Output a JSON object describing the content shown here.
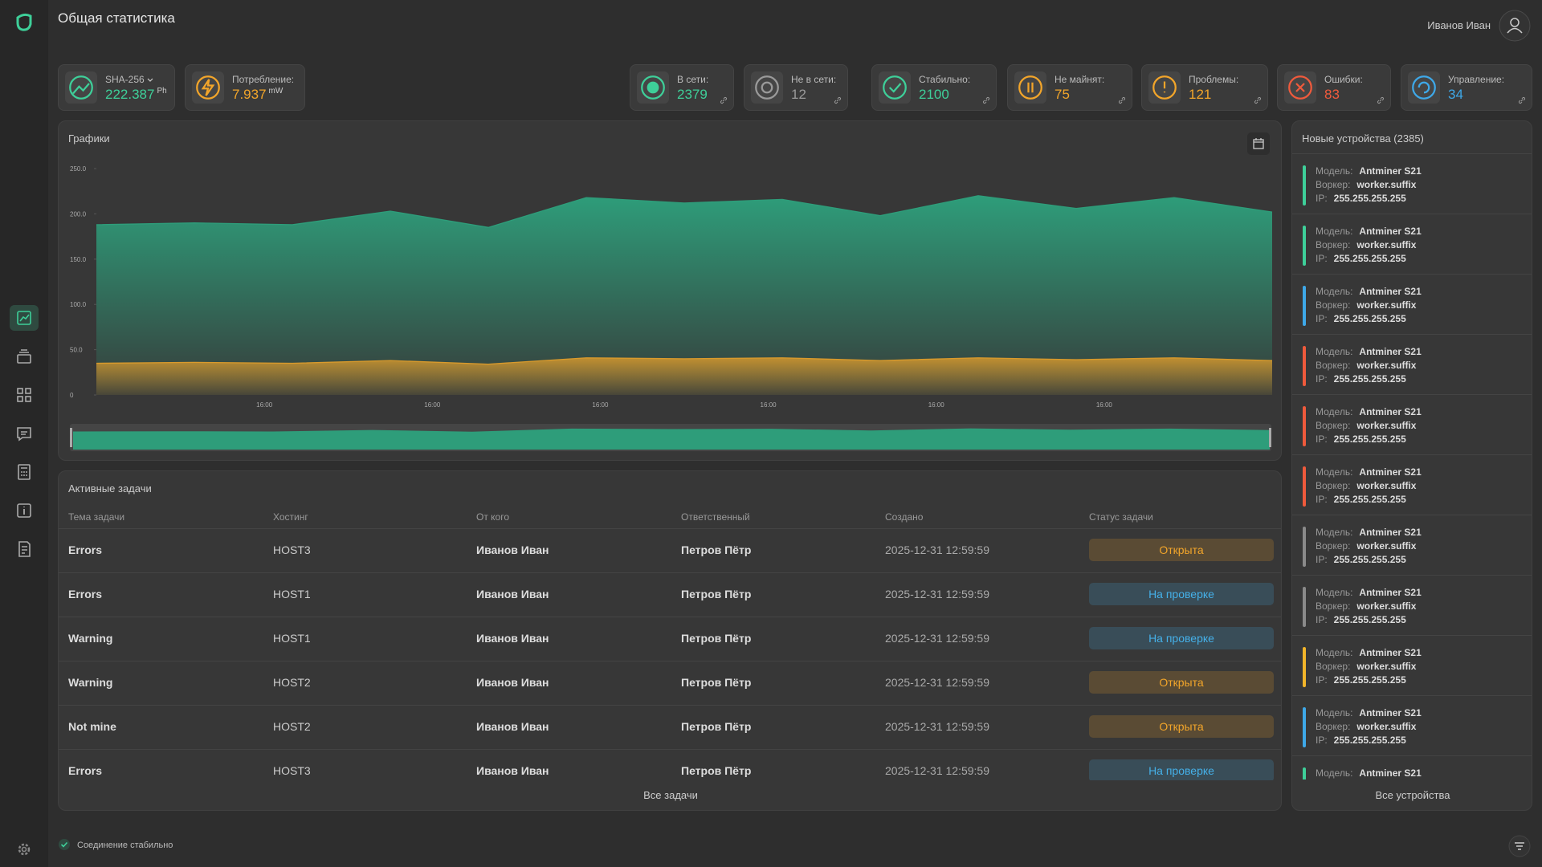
{
  "header": {
    "title": "Общая статистика",
    "user": "Иванов Иван"
  },
  "stats": [
    {
      "label": "SHA-256",
      "value": 222.387,
      "unit": "Ph",
      "color": "#3ecf99"
    },
    {
      "label": "Потребление:",
      "value": 7.937,
      "unit": "mW",
      "color": "#f2a52a"
    },
    {
      "label": "В сети:",
      "value": 2379,
      "color": "#3ecf99"
    },
    {
      "label": "Не в сети:",
      "value": 12,
      "color": "#9a9a9a"
    },
    {
      "label": "Стабильно:",
      "value": 2100,
      "color": "#3ecf99"
    },
    {
      "label": "Не майнят:",
      "value": 75,
      "color": "#f2a52a"
    },
    {
      "label": "Проблемы:",
      "value": 121,
      "color": "#f2a52a"
    },
    {
      "label": "Ошибки:",
      "value": 83,
      "color": "#ef5a3c"
    },
    {
      "label": "Управление:",
      "value": 34,
      "color": "#3ea8e8"
    }
  ],
  "chart": {
    "type": "area",
    "title": "Графики",
    "ylim": [
      0,
      250
    ],
    "yticks": [
      0,
      {
        "value": 50,
        "label": "50.0"
      },
      {
        "value": 100,
        "label": "100.0"
      },
      {
        "value": 150,
        "label": "150.0"
      },
      {
        "value": 200,
        "label": "200.0"
      },
      {
        "value": 250,
        "label": "250.0"
      }
    ],
    "x_labels": [
      "16:00",
      "16:00",
      "16:00",
      "16:00",
      "16:00",
      "16:00"
    ],
    "series": [
      {
        "color": "#2e9d7a",
        "values": [
          188,
          190,
          188,
          203,
          185,
          218,
          212,
          216,
          198,
          220,
          206,
          218,
          202
        ]
      },
      {
        "color": "#d99a2c",
        "values": [
          35,
          36,
          35,
          38,
          34,
          41,
          40,
          41,
          38,
          41,
          39,
          41,
          38
        ]
      }
    ]
  },
  "tasks": {
    "title": "Активные задачи",
    "columns": [
      "Тема задачи",
      "Хостинг",
      "От кого",
      "Ответственный",
      "Создано",
      "Статус задачи"
    ],
    "rows": [
      {
        "topic": "Errors",
        "host": "HOST3",
        "from": "Иванов Иван",
        "assignee": "Петров Пётр",
        "created": "2025-12-31 12:59:59",
        "status": "Открыта",
        "status_color": "#f2a52a"
      },
      {
        "topic": "Errors",
        "host": "HOST1",
        "from": "Иванов Иван",
        "assignee": "Петров Пётр",
        "created": "2025-12-31 12:59:59",
        "status": "На проверке",
        "status_color": "#45b0e8"
      },
      {
        "topic": "Warning",
        "host": "HOST1",
        "from": "Иванов Иван",
        "assignee": "Петров Пётр",
        "created": "2025-12-31 12:59:59",
        "status": "На проверке",
        "status_color": "#45b0e8"
      },
      {
        "topic": "Warning",
        "host": "HOST2",
        "from": "Иванов Иван",
        "assignee": "Петров Пётр",
        "created": "2025-12-31 12:59:59",
        "status": "Открыта",
        "status_color": "#f2a52a"
      },
      {
        "topic": "Not mine",
        "host": "HOST2",
        "from": "Иванов Иван",
        "assignee": "Петров Пётр",
        "created": "2025-12-31 12:59:59",
        "status": "Открыта",
        "status_color": "#f2a52a"
      },
      {
        "topic": "Errors",
        "host": "HOST3",
        "from": "Иванов Иван",
        "assignee": "Петров Пётр",
        "created": "2025-12-31 12:59:59",
        "status": "На проверке",
        "status_color": "#45b0e8"
      }
    ],
    "link": "Все задачи"
  },
  "devices": {
    "title": "Новые устройства (2385)",
    "labels": [
      "Модель:",
      "Воркер:",
      "IP:"
    ],
    "items": [
      {
        "color": "#3ecf99",
        "model": "Antminer S21",
        "worker": "worker.suffix",
        "ip": "255.255.255.255"
      },
      {
        "color": "#3ecf99",
        "model": "Antminer S21",
        "worker": "worker.suffix",
        "ip": "255.255.255.255"
      },
      {
        "color": "#3ea8e8",
        "model": "Antminer S21",
        "worker": "worker.suffix",
        "ip": "255.255.255.255"
      },
      {
        "color": "#ef5a3c",
        "model": "Antminer S21",
        "worker": "worker.suffix",
        "ip": "255.255.255.255"
      },
      {
        "color": "#ef5a3c",
        "model": "Antminer S21",
        "worker": "worker.suffix",
        "ip": "255.255.255.255"
      },
      {
        "color": "#ef5a3c",
        "model": "Antminer S21",
        "worker": "worker.suffix",
        "ip": "255.255.255.255"
      },
      {
        "color": "#8a8a8a",
        "model": "Antminer S21",
        "worker": "worker.suffix",
        "ip": "255.255.255.255"
      },
      {
        "color": "#8a8a8a",
        "model": "Antminer S21",
        "worker": "worker.suffix",
        "ip": "255.255.255.255"
      },
      {
        "color": "#f2b52a",
        "model": "Antminer S21",
        "worker": "worker.suffix",
        "ip": "255.255.255.255"
      },
      {
        "color": "#3ea8e8",
        "model": "Antminer S21",
        "worker": "worker.suffix",
        "ip": "255.255.255.255"
      },
      {
        "color": "#3ecf99",
        "model": "Antminer S21"
      }
    ],
    "link": "Все устройства"
  },
  "footer": {
    "status": "Соединение стабильно"
  }
}
